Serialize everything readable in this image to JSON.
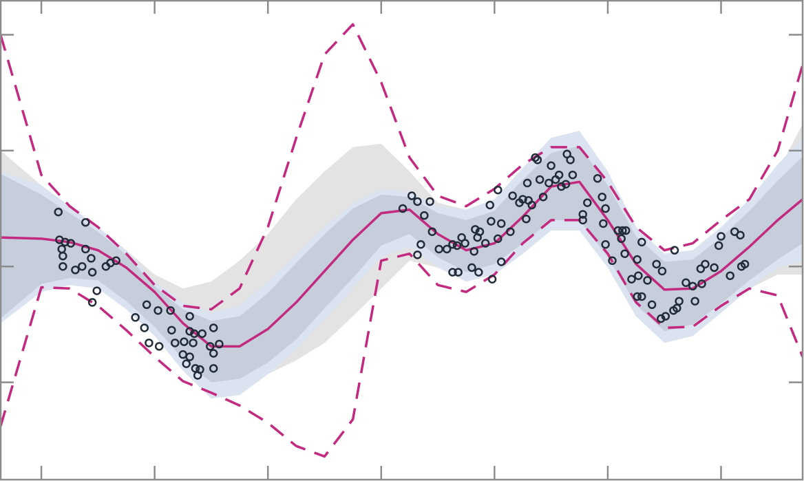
{
  "chart_data": {
    "type": "band-line-scatter",
    "xlim": [
      -0.365,
      6.72
    ],
    "ylim": [
      -1.84,
      2.3
    ],
    "xticks": [
      0,
      1,
      2,
      3,
      4,
      5,
      6
    ],
    "yticks": [
      -1,
      0,
      1,
      2
    ],
    "x": [
      -0.36,
      0,
      0.25,
      0.5,
      0.75,
      1,
      1.25,
      1.5,
      1.75,
      2,
      2.25,
      2.5,
      2.75,
      3,
      3.25,
      3.5,
      3.75,
      4,
      4.25,
      4.5,
      4.75,
      5,
      5.25,
      5.5,
      5.75,
      6,
      6.25,
      6.5,
      6.72
    ],
    "bands": [
      {
        "color": "#e3e3e3",
        "upper": [
          1.0,
          0.7,
          0.52,
          0.34,
          0.14,
          -0.07,
          -0.19,
          -0.13,
          0.05,
          0.28,
          0.58,
          0.82,
          1.03,
          1.06,
          0.82,
          0.55,
          0.49,
          0.58,
          0.85,
          1.11,
          1.17,
          0.82,
          0.34,
          0.11,
          0.14,
          0.34,
          0.52,
          0.82,
          1.23
        ],
        "lower": [
          -0.46,
          -0.22,
          -0.16,
          -0.19,
          -0.37,
          -0.6,
          -0.81,
          -0.93,
          -0.96,
          -0.93,
          -0.81,
          -0.66,
          -0.43,
          -0.19,
          0.05,
          -0.01,
          -0.13,
          -0.07,
          0.11,
          0.31,
          0.31,
          -0.01,
          -0.43,
          -0.66,
          -0.6,
          -0.4,
          -0.19,
          -0.07,
          -0.07
        ]
      },
      {
        "color": "#dce3f0",
        "upper": [
          0.82,
          0.7,
          0.52,
          0.34,
          0.14,
          -0.13,
          -0.31,
          -0.4,
          -0.34,
          -0.13,
          0.11,
          0.34,
          0.55,
          0.67,
          0.64,
          0.52,
          0.49,
          0.58,
          0.85,
          1.11,
          1.17,
          0.82,
          0.34,
          0.11,
          0.14,
          0.34,
          0.58,
          0.88,
          1.11
        ],
        "lower": [
          -0.49,
          -0.22,
          -0.16,
          -0.19,
          -0.37,
          -0.6,
          -0.9,
          -1.14,
          -1.11,
          -0.93,
          -0.72,
          -0.46,
          -0.19,
          0.08,
          0.17,
          -0.01,
          -0.13,
          -0.07,
          0.11,
          0.31,
          0.31,
          -0.01,
          -0.43,
          -0.66,
          -0.6,
          -0.4,
          -0.19,
          -0.01,
          0.05
        ]
      },
      {
        "color": "#c6cedb",
        "upper": [
          0.8,
          0.62,
          0.46,
          0.3,
          0.1,
          -0.17,
          -0.37,
          -0.47,
          -0.43,
          -0.23,
          0.03,
          0.28,
          0.5,
          0.62,
          0.6,
          0.46,
          0.4,
          0.48,
          0.75,
          0.98,
          1.04,
          0.7,
          0.26,
          0.04,
          0.06,
          0.25,
          0.48,
          0.74,
          0.95
        ],
        "lower": [
          -0.45,
          -0.15,
          -0.1,
          -0.12,
          -0.3,
          -0.52,
          -0.8,
          -1.0,
          -0.97,
          -0.83,
          -0.63,
          -0.36,
          -0.1,
          0.18,
          0.28,
          0.08,
          -0.05,
          0.02,
          0.2,
          0.4,
          0.4,
          0.08,
          -0.33,
          -0.56,
          -0.5,
          -0.32,
          -0.12,
          0.06,
          0.2
        ]
      }
    ],
    "lines": [
      {
        "color": "#c2297f",
        "dashed": false,
        "values": [
          0.25,
          0.24,
          0.21,
          0.14,
          -0.01,
          -0.22,
          -0.49,
          -0.69,
          -0.69,
          -0.54,
          -0.31,
          -0.04,
          0.23,
          0.46,
          0.49,
          0.28,
          0.14,
          0.2,
          0.43,
          0.69,
          0.73,
          0.4,
          0.02,
          -0.2,
          -0.19,
          -0.04,
          0.17,
          0.4,
          0.58
        ]
      },
      {
        "color": "#c2297f",
        "dashed": true,
        "values": [
          2.0,
          0.79,
          0.52,
          0.34,
          0.11,
          -0.16,
          -0.34,
          -0.37,
          -0.19,
          0.34,
          1.11,
          1.83,
          2.09,
          1.59,
          0.94,
          0.61,
          0.52,
          0.67,
          0.88,
          1.03,
          1.03,
          0.73,
          0.34,
          0.14,
          0.2,
          0.4,
          0.58,
          1.0,
          1.74
        ]
      },
      {
        "color": "#c2297f",
        "dashed": true,
        "values": [
          -1.38,
          -0.18,
          -0.19,
          -0.34,
          -0.55,
          -0.78,
          -0.99,
          -1.09,
          -1.2,
          -1.35,
          -1.55,
          -1.64,
          -1.32,
          0.05,
          0.11,
          -0.16,
          -0.22,
          -0.07,
          0.2,
          0.4,
          0.4,
          0.11,
          -0.31,
          -0.53,
          -0.52,
          -0.34,
          -0.19,
          -0.25,
          -0.78
        ]
      }
    ],
    "points": {
      "color": "#222c38",
      "x": [
        0.15,
        0.39,
        0.16,
        0.21,
        0.26,
        0.18,
        0.39,
        0.19,
        0.44,
        0.19,
        0.36,
        0.3,
        0.45,
        0.57,
        0.61,
        0.66,
        0.49,
        0.45,
        0.93,
        1.03,
        1.14,
        0.83,
        1.31,
        0.91,
        1.15,
        1.31,
        1.52,
        1.35,
        1.42,
        0.95,
        1.04,
        1.18,
        1.26,
        1.34,
        1.49,
        1.57,
        1.25,
        1.31,
        1.28,
        1.52,
        1.36,
        1.4,
        1.38,
        1.52,
        3.19,
        3.27,
        3.32,
        3.43,
        3.38,
        3.45,
        3.35,
        3.32,
        3.51,
        3.58,
        3.63,
        3.67,
        3.71,
        3.74,
        3.82,
        3.83,
        3.87,
        3.85,
        3.92,
        3.97,
        3.96,
        4.03,
        4.06,
        4.03,
        3.63,
        3.68,
        3.8,
        3.86,
        4.06,
        3.98,
        4.16,
        4.14,
        4.22,
        4.25,
        4.29,
        4.3,
        4.28,
        4.33,
        4.36,
        4.38,
        4.4,
        4.43,
        4.48,
        4.5,
        4.54,
        4.59,
        4.57,
        4.63,
        4.64,
        4.67,
        4.69,
        4.78,
        4.78,
        4.82,
        4.91,
        4.95,
        4.98,
        4.96,
        4.98,
        5.04,
        5.09,
        5.13,
        5.12,
        5.16,
        5.15,
        5.26,
        5.3,
        5.21,
        5.27,
        5.35,
        5.43,
        5.48,
        5.26,
        5.3,
        5.39,
        5.47,
        5.51,
        5.58,
        5.61,
        5.63,
        5.59,
        5.69,
        5.75,
        5.77,
        5.83,
        5.86,
        5.82,
        5.94,
        6.0,
        5.98,
        6.08,
        6.12,
        6.17,
        6.18,
        6.21
      ],
      "y": [
        0.47,
        0.38,
        0.23,
        0.21,
        0.2,
        0.15,
        0.15,
        0.09,
        0.07,
        0,
        0,
        -0.03,
        -0.05,
        0,
        0.03,
        0.05,
        -0.21,
        -0.31,
        -0.33,
        -0.38,
        -0.38,
        -0.44,
        -0.43,
        -0.53,
        -0.55,
        -0.56,
        -0.53,
        -0.58,
        -0.58,
        -0.66,
        -0.69,
        -0.66,
        -0.65,
        -0.66,
        -0.69,
        -0.67,
        -0.76,
        -0.78,
        -0.84,
        -0.75,
        -0.88,
        -0.89,
        -0.94,
        -0.88,
        0.5,
        0.61,
        0.56,
        0.56,
        0.44,
        0.3,
        0.19,
        0.1,
        0.15,
        0.15,
        0.19,
        0.18,
        0.25,
        0.2,
        0.13,
        0.32,
        0.3,
        0.25,
        0.2,
        0.39,
        0.53,
        0.66,
        0.37,
        0.24,
        -0.05,
        -0.05,
        -0.01,
        -0.05,
        0.04,
        -0.11,
        0.61,
        0.3,
        0.55,
        0.58,
        0.72,
        0.57,
        0.41,
        0.53,
        0.94,
        0.92,
        0.75,
        0.6,
        0.72,
        0.87,
        0.75,
        0.69,
        0.79,
        0.71,
        0.97,
        0.92,
        0.79,
        0.45,
        0.4,
        0.55,
        0.76,
        0.6,
        0.5,
        0.37,
        0.19,
        0.05,
        0.31,
        0.31,
        0.24,
        0.31,
        0.11,
        0.06,
        0.21,
        -0.11,
        -0.08,
        -0.12,
        0.02,
        -0.04,
        -0.26,
        -0.26,
        -0.33,
        -0.45,
        -0.43,
        -0.38,
        -0.36,
        -0.3,
        0.14,
        -0.14,
        -0.17,
        -0.3,
        -0.15,
        0.02,
        -0.02,
        -0.01,
        0.26,
        0.18,
        -0.08,
        0.3,
        0.27,
        0,
        0.02
      ]
    }
  }
}
